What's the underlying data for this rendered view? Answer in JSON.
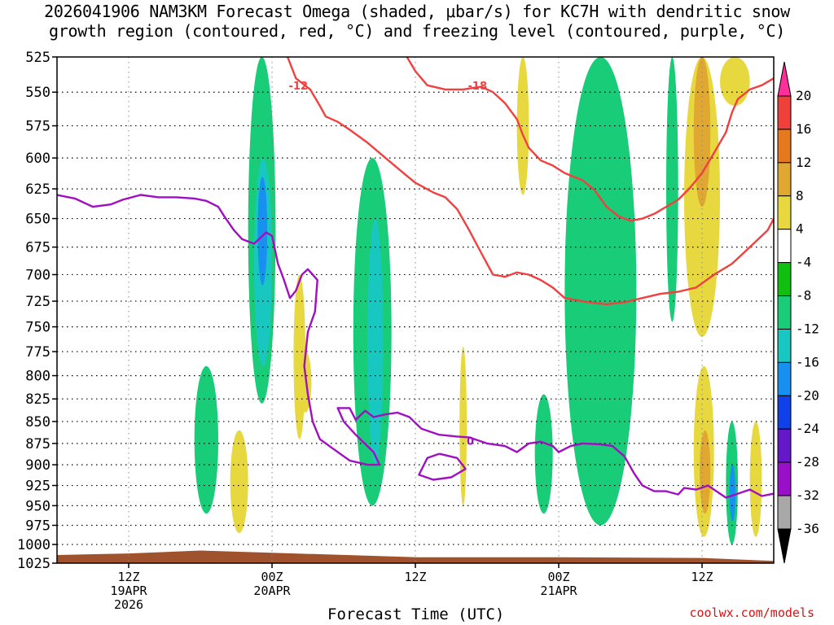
{
  "title": {
    "line1": "2026041906 NAM3KM Forecast Omega (shaded, μbar/s) for KC7H with dendritic snow",
    "line2": "growth region (contoured, red, °C) and freezing level (contoured, purple, °C)"
  },
  "credit": "coolwx.com/models",
  "chart_data": {
    "type": "area",
    "xlabel": "Forecast Time (UTC)",
    "ylabel": "",
    "y_axis_type": "pressure (hPa), log scale, inverted",
    "ylim": [
      1025,
      525
    ],
    "x_range_hours": [
      6,
      66
    ],
    "pressure_levels": [
      525,
      550,
      575,
      600,
      625,
      650,
      675,
      700,
      725,
      750,
      775,
      800,
      825,
      850,
      875,
      900,
      925,
      950,
      975,
      1000,
      1025
    ],
    "x_ticks": [
      {
        "hour": 12,
        "label": [
          "12Z",
          "19APR",
          "2026"
        ]
      },
      {
        "hour": 24,
        "label": [
          "00Z",
          "20APR"
        ]
      },
      {
        "hour": 36,
        "label": [
          "12Z"
        ]
      },
      {
        "hour": 48,
        "label": [
          "00Z",
          "21APR"
        ]
      },
      {
        "hour": 60,
        "label": [
          "12Z"
        ]
      }
    ],
    "colorbar": {
      "levels": [
        -36,
        -32,
        -28,
        -24,
        -20,
        -16,
        -12,
        -8,
        -4,
        4,
        8,
        12,
        16,
        20
      ],
      "labels": [
        "20",
        "16",
        "12",
        "8",
        "4",
        "-4",
        "-8",
        "-12",
        "-16",
        "-20",
        "-24",
        "-28",
        "-32",
        "-36"
      ],
      "colors_top_to_bottom": [
        "#ff2f9a",
        "#f0403a",
        "#e6781e",
        "#e0a830",
        "#e8d840",
        "#ffffff",
        "#10c010",
        "#18cc78",
        "#18c8c0",
        "#1890f0",
        "#1040e8",
        "#6418c8",
        "#9a10c8",
        "#a8a8a8",
        "#000000"
      ]
    },
    "omega_regions": [
      {
        "value": -8,
        "hours": [
          30.8,
          34.0
        ],
        "p": [
          600,
          950
        ]
      },
      {
        "value": -12,
        "hours": [
          32.0,
          33.3
        ],
        "p": [
          650,
          900
        ]
      },
      {
        "value": -8,
        "hours": [
          48.5,
          54.5
        ],
        "p": [
          525,
          975
        ]
      },
      {
        "value": -8,
        "hours": [
          22.0,
          24.3
        ],
        "p": [
          525,
          830
        ]
      },
      {
        "value": -12,
        "hours": [
          22.5,
          24.0
        ],
        "p": [
          600,
          790
        ]
      },
      {
        "value": -16,
        "hours": [
          22.8,
          23.6
        ],
        "p": [
          615,
          710
        ]
      },
      {
        "value": -8,
        "hours": [
          17.5,
          19.5
        ],
        "p": [
          790,
          960
        ]
      },
      {
        "value": -8,
        "hours": [
          46.0,
          47.5
        ],
        "p": [
          820,
          960
        ]
      },
      {
        "value": -8,
        "hours": [
          57.0,
          58.0
        ],
        "p": [
          525,
          745
        ]
      },
      {
        "value": -8,
        "hours": [
          62.0,
          63.0
        ],
        "p": [
          850,
          1000
        ]
      },
      {
        "value": -16,
        "hours": [
          62.3,
          62.8
        ],
        "p": [
          900,
          970
        ]
      },
      {
        "value": 4,
        "hours": [
          58.5,
          61.5
        ],
        "p": [
          525,
          760
        ]
      },
      {
        "value": 8,
        "hours": [
          59.3,
          60.7
        ],
        "p": [
          525,
          640
        ]
      },
      {
        "value": 4,
        "hours": [
          61.5,
          64.0
        ],
        "p": [
          525,
          560
        ]
      },
      {
        "value": 4,
        "hours": [
          59.3,
          61.0
        ],
        "p": [
          790,
          990
        ]
      },
      {
        "value": 8,
        "hours": [
          59.8,
          60.7
        ],
        "p": [
          860,
          960
        ]
      },
      {
        "value": 4,
        "hours": [
          25.8,
          26.8
        ],
        "p": [
          700,
          870
        ]
      },
      {
        "value": 4,
        "hours": [
          26.3,
          27.3
        ],
        "p": [
          775,
          840
        ]
      },
      {
        "value": 4,
        "hours": [
          20.5,
          22.0
        ],
        "p": [
          860,
          985
        ]
      },
      {
        "value": 4,
        "hours": [
          39.7,
          40.3
        ],
        "p": [
          770,
          950
        ]
      },
      {
        "value": 4,
        "hours": [
          44.5,
          45.5
        ],
        "p": [
          525,
          630
        ]
      },
      {
        "value": 4,
        "hours": [
          64.0,
          65.0
        ],
        "p": [
          850,
          990
        ]
      }
    ],
    "contours": [
      {
        "name": "-12",
        "color": "#f04040",
        "label_at": {
          "hour": 26.2,
          "p": 545
        },
        "points": [
          [
            25.3,
            525
          ],
          [
            26.0,
            540
          ],
          [
            27.2,
            548
          ],
          [
            28.0,
            560
          ],
          [
            28.5,
            568
          ],
          [
            29.5,
            572
          ],
          [
            30.5,
            578
          ],
          [
            32.0,
            588
          ],
          [
            33.5,
            600
          ],
          [
            35.0,
            612
          ],
          [
            36.0,
            620
          ],
          [
            37.5,
            628
          ],
          [
            38.5,
            632
          ],
          [
            39.5,
            642
          ],
          [
            40.5,
            660
          ],
          [
            41.5,
            680
          ],
          [
            42.5,
            700
          ],
          [
            43.5,
            702
          ],
          [
            44.5,
            698
          ],
          [
            45.5,
            700
          ],
          [
            46.5,
            705
          ],
          [
            47.5,
            712
          ],
          [
            48.5,
            722
          ],
          [
            50.5,
            726
          ],
          [
            52.0,
            728
          ],
          [
            53.5,
            726
          ],
          [
            55.0,
            722
          ],
          [
            56.5,
            718
          ],
          [
            58.0,
            716
          ],
          [
            59.5,
            712
          ],
          [
            61.0,
            700
          ],
          [
            62.5,
            690
          ],
          [
            64.0,
            675
          ],
          [
            65.5,
            660
          ],
          [
            66.0,
            650
          ]
        ]
      },
      {
        "name": "-18",
        "color": "#f04040",
        "label_at": {
          "hour": 41.2,
          "p": 545
        },
        "points": [
          [
            35.3,
            525
          ],
          [
            36.0,
            535
          ],
          [
            37.0,
            545
          ],
          [
            38.5,
            548
          ],
          [
            40.0,
            548
          ],
          [
            41.5,
            546
          ],
          [
            42.5,
            550
          ],
          [
            43.5,
            558
          ],
          [
            44.5,
            570
          ],
          [
            45.0,
            582
          ],
          [
            45.5,
            592
          ],
          [
            46.5,
            602
          ],
          [
            47.5,
            606
          ],
          [
            48.5,
            612
          ],
          [
            50.0,
            618
          ],
          [
            51.0,
            626
          ],
          [
            52.0,
            640
          ],
          [
            53.0,
            648
          ],
          [
            54.0,
            652
          ],
          [
            55.0,
            650
          ],
          [
            56.0,
            646
          ],
          [
            57.0,
            640
          ],
          [
            58.0,
            634
          ],
          [
            59.0,
            624
          ],
          [
            60.0,
            612
          ],
          [
            61.0,
            596
          ],
          [
            62.0,
            580
          ],
          [
            62.5,
            565
          ],
          [
            63.0,
            555
          ],
          [
            64.0,
            548
          ],
          [
            65.0,
            545
          ],
          [
            66.0,
            540
          ]
        ]
      },
      {
        "name": "0",
        "color": "#a010c0",
        "label_at": {
          "hour": 40.6,
          "p": 872
        },
        "points": [
          [
            6.0,
            630
          ],
          [
            7.5,
            633
          ],
          [
            9.0,
            640
          ],
          [
            10.5,
            638
          ],
          [
            11.5,
            634
          ],
          [
            13.0,
            630
          ],
          [
            14.5,
            632
          ],
          [
            16.0,
            632
          ],
          [
            17.5,
            633
          ],
          [
            18.5,
            635
          ],
          [
            19.5,
            640
          ],
          [
            20.0,
            648
          ],
          [
            20.8,
            660
          ],
          [
            21.5,
            668
          ],
          [
            22.5,
            672
          ],
          [
            23.5,
            662
          ],
          [
            24.0,
            665
          ],
          [
            24.5,
            690
          ],
          [
            25.0,
            705
          ],
          [
            25.5,
            722
          ],
          [
            26.0,
            715
          ],
          [
            26.5,
            700
          ],
          [
            27.0,
            695
          ],
          [
            27.8,
            705
          ],
          [
            27.6,
            735
          ],
          [
            27.0,
            755
          ],
          [
            26.7,
            790
          ],
          [
            27.0,
            820
          ],
          [
            27.4,
            850
          ],
          [
            28.0,
            870
          ],
          [
            29.0,
            880
          ],
          [
            30.5,
            895
          ],
          [
            32.0,
            900
          ],
          [
            33.0,
            900
          ],
          [
            32.5,
            885
          ],
          [
            31.0,
            865
          ],
          [
            30.0,
            850
          ],
          [
            29.5,
            835
          ],
          [
            30.5,
            835
          ],
          [
            31.0,
            848
          ],
          [
            31.8,
            838
          ],
          [
            32.5,
            845
          ],
          [
            33.5,
            842
          ],
          [
            34.5,
            840
          ],
          [
            35.5,
            845
          ],
          [
            36.5,
            858
          ],
          [
            38.0,
            865
          ],
          [
            39.5,
            867
          ],
          [
            40.5,
            868
          ],
          [
            42.0,
            875
          ],
          [
            43.5,
            878
          ],
          [
            44.5,
            885
          ],
          [
            45.5,
            875
          ],
          [
            46.5,
            873
          ],
          [
            47.5,
            878
          ],
          [
            48.0,
            885
          ],
          [
            49.0,
            878
          ],
          [
            50.0,
            875
          ],
          [
            51.5,
            876
          ],
          [
            52.5,
            878
          ],
          [
            53.5,
            890
          ],
          [
            54.3,
            910
          ],
          [
            55.0,
            925
          ],
          [
            56.0,
            932
          ],
          [
            57.0,
            932
          ],
          [
            58.0,
            936
          ],
          [
            58.5,
            928
          ],
          [
            59.5,
            930
          ],
          [
            60.5,
            925
          ],
          [
            61.0,
            930
          ],
          [
            62.0,
            940
          ],
          [
            63.0,
            935
          ],
          [
            64.0,
            930
          ],
          [
            65.0,
            938
          ],
          [
            66.0,
            935
          ]
        ]
      },
      {
        "name": "0-closed",
        "color": "#a010c0",
        "label_at": null,
        "points": [
          [
            38.0,
            887
          ],
          [
            39.5,
            892
          ],
          [
            40.2,
            905
          ],
          [
            39.0,
            915
          ],
          [
            37.5,
            918
          ],
          [
            36.3,
            912
          ],
          [
            37.0,
            892
          ],
          [
            38.0,
            887
          ]
        ]
      }
    ],
    "terrain": {
      "color": "#a0522d",
      "surface_p": [
        [
          6,
          1014
        ],
        [
          12,
          1012
        ],
        [
          18,
          1008
        ],
        [
          24,
          1011
        ],
        [
          36,
          1017
        ],
        [
          48,
          1017
        ],
        [
          60,
          1018
        ],
        [
          66,
          1022
        ]
      ]
    }
  }
}
